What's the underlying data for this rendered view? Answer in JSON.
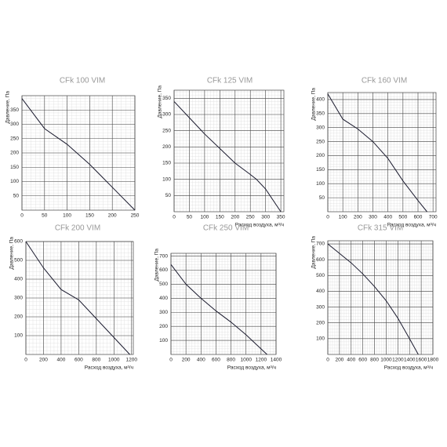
{
  "chart_data": [
    {
      "type": "line",
      "title": "CFk 100 VIM",
      "y_label": "Давление, Па",
      "x": [
        0,
        50,
        100,
        150,
        200,
        250
      ],
      "series": [
        {
          "color": "#1a1a2e",
          "values": [
            390,
            285,
            230,
            160,
            80,
            0
          ]
        }
      ],
      "xlim": [
        0,
        250
      ],
      "ylim": [
        0,
        400
      ],
      "xticks": [
        0,
        50,
        100,
        150,
        200,
        250
      ],
      "yticks": [
        50,
        100,
        150,
        200,
        250,
        300,
        350
      ],
      "grid": true
    },
    {
      "type": "line",
      "title": "CFk 125 VIM",
      "y_label": "Давление, Па",
      "x_label": "Расход воздуха, м³/ч",
      "x": [
        0,
        50,
        100,
        150,
        200,
        250,
        270,
        300,
        350
      ],
      "series": [
        {
          "color": "#1a1a2e",
          "values": [
            340,
            290,
            240,
            195,
            150,
            115,
            100,
            70,
            0
          ]
        }
      ],
      "xlim": [
        0,
        360
      ],
      "ylim": [
        0,
        375
      ],
      "xticks": [
        0,
        50,
        100,
        150,
        200,
        250,
        300,
        350
      ],
      "yticks": [
        50,
        100,
        150,
        200,
        250,
        300,
        350
      ],
      "grid": true
    },
    {
      "type": "line",
      "title": "CFk 160 VIM",
      "y_label": "Давление, Па",
      "x_label": "Расход воздуха, м³/ч",
      "x": [
        0,
        100,
        200,
        300,
        400,
        500,
        600,
        660
      ],
      "series": [
        {
          "color": "#1a1a2e",
          "values": [
            420,
            330,
            295,
            250,
            190,
            110,
            40,
            0
          ]
        }
      ],
      "xlim": [
        0,
        720
      ],
      "ylim": [
        0,
        425
      ],
      "xticks": [
        0,
        100,
        200,
        300,
        400,
        500,
        600,
        700
      ],
      "yticks": [
        50,
        100,
        150,
        200,
        250,
        300,
        350,
        400
      ],
      "grid": true
    },
    {
      "type": "line",
      "title": "CFk 200 VIM",
      "y_label": "Давление, Па",
      "x_label": "Расход воздуха, м³/ч",
      "x": [
        0,
        200,
        400,
        600,
        800,
        1000,
        1180
      ],
      "series": [
        {
          "color": "#1a1a2e",
          "values": [
            600,
            460,
            345,
            290,
            190,
            90,
            0
          ]
        }
      ],
      "xlim": [
        0,
        1220
      ],
      "ylim": [
        0,
        600
      ],
      "xticks": [
        0,
        200,
        400,
        600,
        800,
        1000,
        1200
      ],
      "yticks": [
        100,
        200,
        300,
        400,
        500,
        600
      ],
      "grid": true
    },
    {
      "type": "line",
      "title": "CFk 250 VIM",
      "y_label": "Давление, Па",
      "x_label": "Расход воздуха, м³/ч",
      "x": [
        0,
        200,
        400,
        600,
        800,
        1000,
        1200,
        1280
      ],
      "series": [
        {
          "color": "#1a1a2e",
          "values": [
            640,
            500,
            400,
            310,
            230,
            140,
            40,
            0
          ]
        }
      ],
      "xlim": [
        0,
        1400
      ],
      "ylim": [
        0,
        720
      ],
      "xticks": [
        0,
        200,
        400,
        600,
        800,
        1000,
        1200,
        1400
      ],
      "yticks": [
        100,
        200,
        300,
        400,
        500,
        600,
        700
      ],
      "grid": true
    },
    {
      "type": "line",
      "title": "CFk 315 VIM",
      "y_label": "Давление, Па",
      "x_label": "Расход воздуха, м³/ч",
      "x": [
        0,
        200,
        400,
        600,
        800,
        1000,
        1200,
        1400,
        1550
      ],
      "series": [
        {
          "color": "#1a1a2e",
          "values": [
            700,
            640,
            580,
            510,
            430,
            340,
            230,
            100,
            0
          ]
        }
      ],
      "xlim": [
        0,
        1800
      ],
      "ylim": [
        0,
        720
      ],
      "xticks": [
        0,
        200,
        400,
        600,
        800,
        1000,
        1200,
        1400,
        1600,
        1800
      ],
      "yticks": [
        100,
        200,
        300,
        400,
        500,
        600,
        700
      ],
      "grid": true
    }
  ]
}
